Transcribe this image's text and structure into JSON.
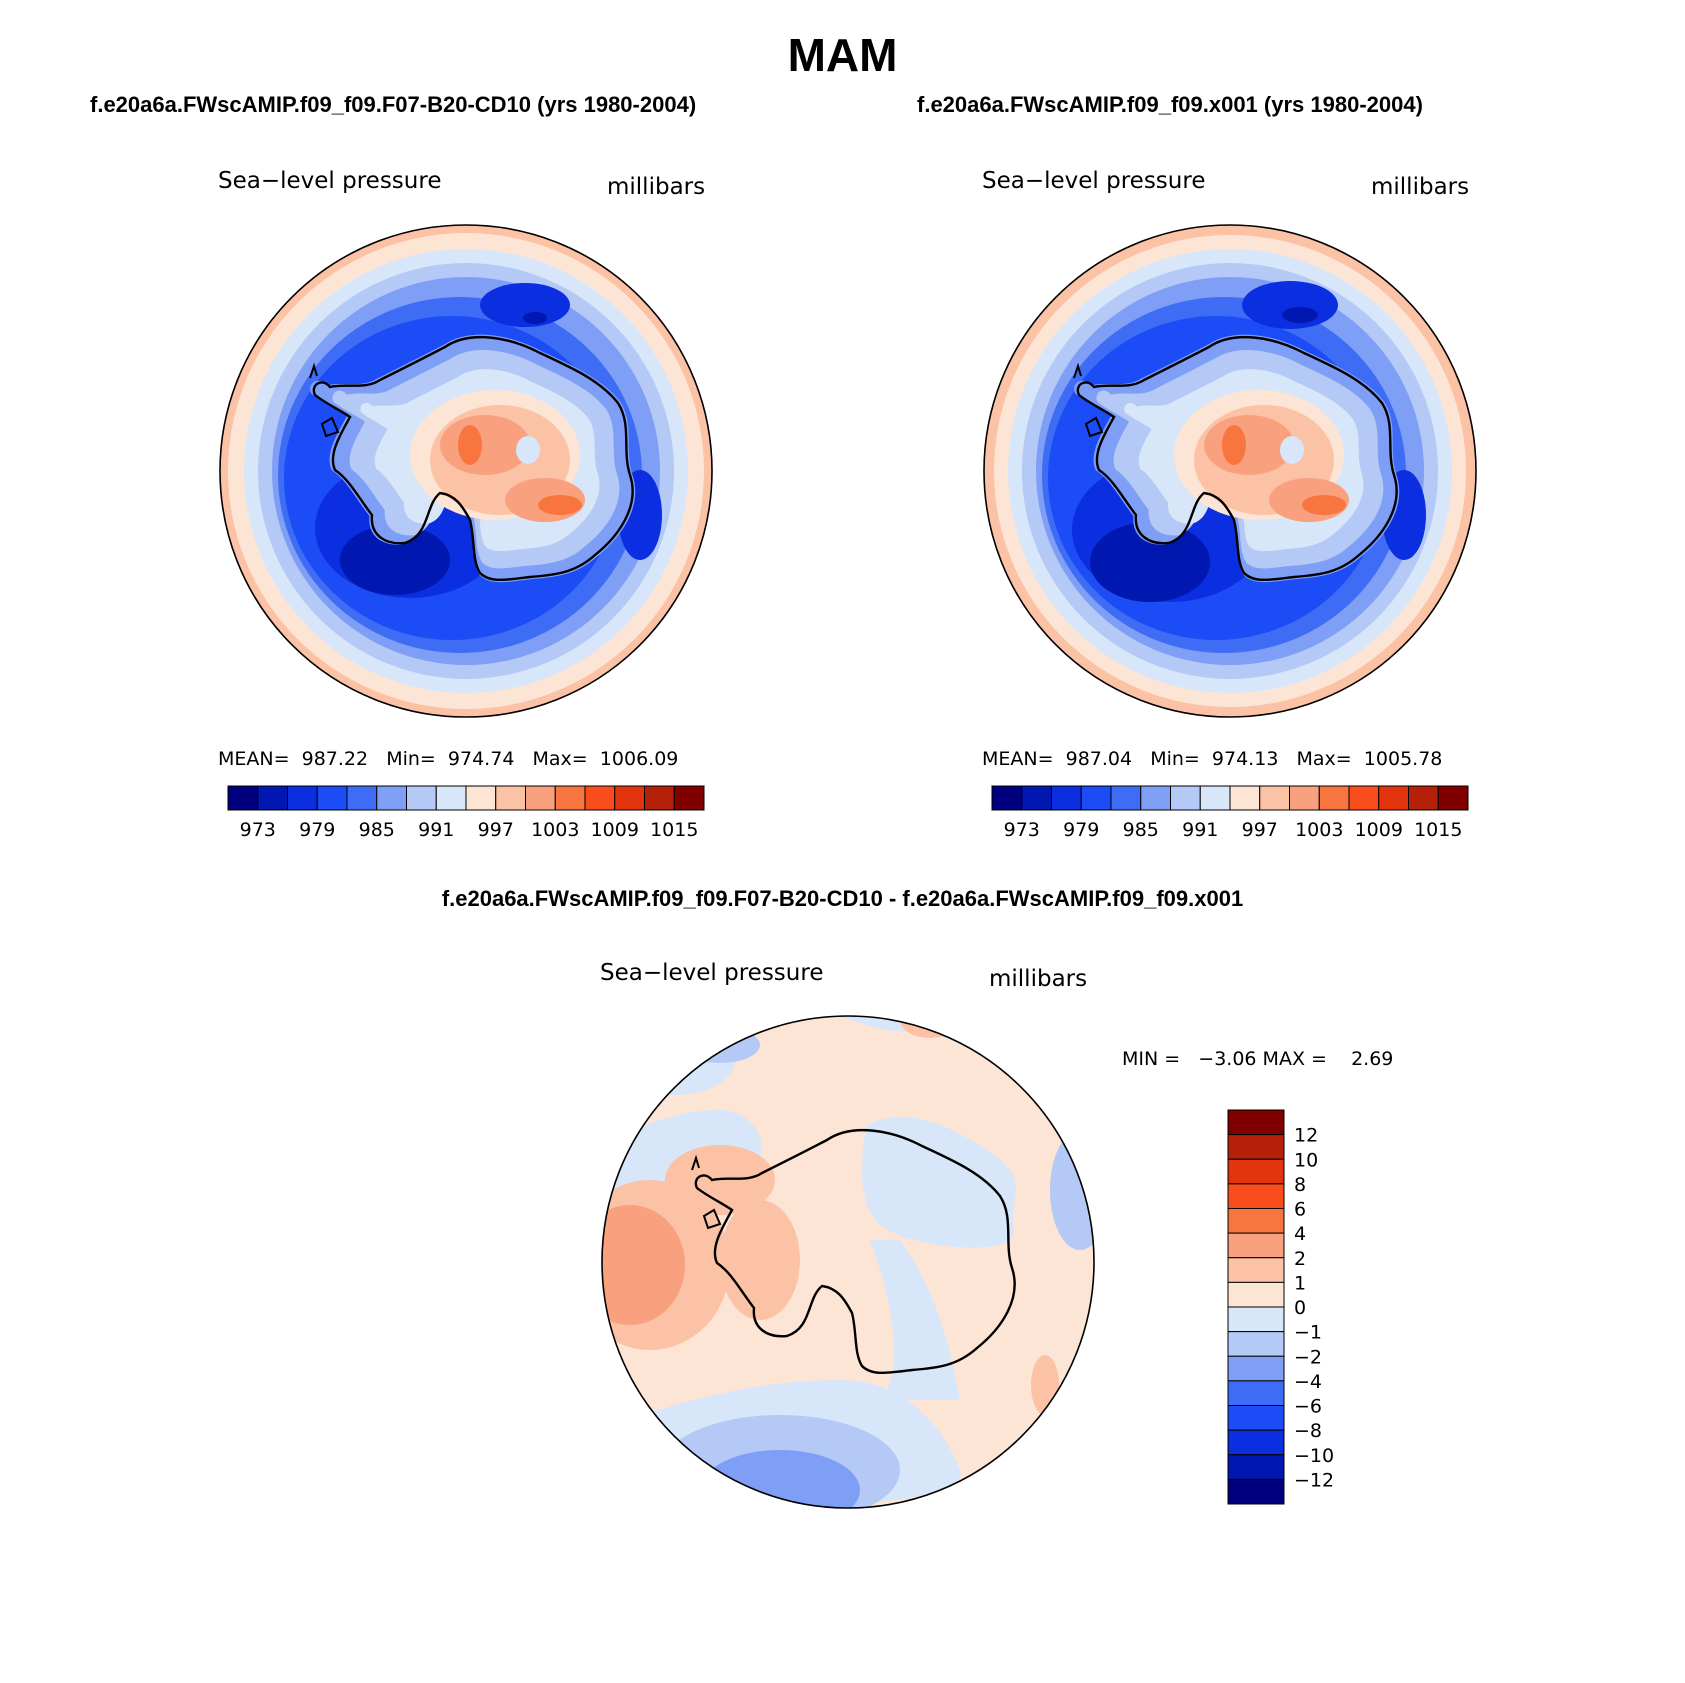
{
  "page_title": "MAM",
  "panels": [
    {
      "case_title": "f.e20a6a.FWscAMIP.f09_f09.F07-B20-CD10 (yrs 1980-2004)",
      "variable": "Sea−level pressure",
      "units": "millibars",
      "stats": "MEAN=  987.22   Min=  974.74   Max=  1006.09",
      "colorbar_labels": [
        "973",
        "979",
        "985",
        "991",
        "997",
        "1003",
        "1009",
        "1015"
      ]
    },
    {
      "case_title": "f.e20a6a.FWscAMIP.f09_f09.x001 (yrs 1980-2004)",
      "variable": "Sea−level pressure",
      "units": "millibars",
      "stats": "MEAN=  987.04   Min=  974.13   Max=  1005.78",
      "colorbar_labels": [
        "973",
        "979",
        "985",
        "991",
        "997",
        "1003",
        "1009",
        "1015"
      ]
    }
  ],
  "difference": {
    "title": "f.e20a6a.FWscAMIP.f09_f09.F07-B20-CD10 - f.e20a6a.FWscAMIP.f09_f09.x001",
    "variable": "Sea−level pressure",
    "units": "millibars",
    "stats": "MIN =   −3.06 MAX =    2.69",
    "colorbar_labels": [
      "12",
      "10",
      "8",
      "6",
      "4",
      "2",
      "1",
      "0",
      "−1",
      "−2",
      "−4",
      "−6",
      "−8",
      "−10",
      "−12"
    ]
  },
  "colors": {
    "palette": [
      "#00007e",
      "#0017b0",
      "#0a2ee0",
      "#1c4cf5",
      "#3e6cf4",
      "#7f9ef6",
      "#b5c9f7",
      "#d7e6f8",
      "#fde5d6",
      "#fbc2a6",
      "#f9a07e",
      "#f97540",
      "#f94d1c",
      "#e2340f",
      "#b5200b",
      "#800000"
    ],
    "land_outline": "#000000"
  }
}
